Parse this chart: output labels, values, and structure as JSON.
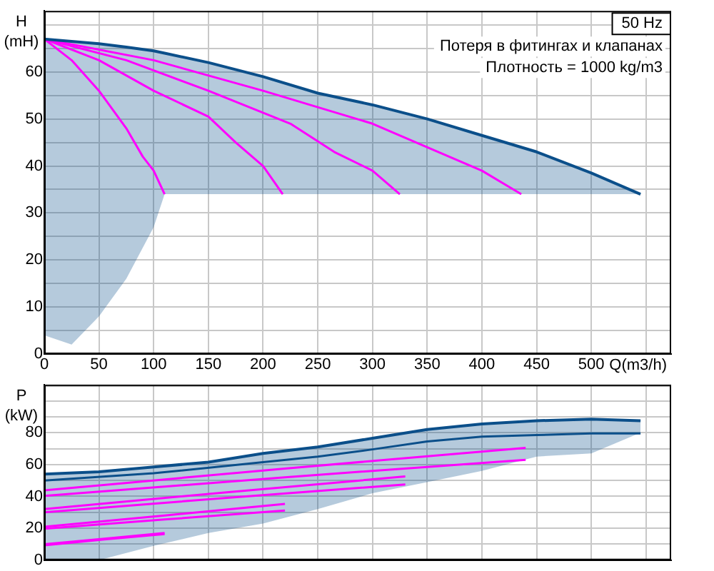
{
  "chart_data": [
    {
      "type": "line",
      "title": "50 Hz",
      "ylabel": "H (mH)",
      "xlabel": "Q(m3/h)",
      "annotations": [
        "Потеря в фитингах и клапанах",
        "Плотность = 1000 kg/m3"
      ],
      "xlim": [
        0,
        573
      ],
      "xticks": [
        0,
        50,
        100,
        150,
        200,
        250,
        300,
        350,
        400,
        450,
        500,
        {
          "value": 550,
          "label": null
        }
      ],
      "ylim": [
        0,
        73
      ],
      "yticks": [
        0,
        {
          "value": 5,
          "label": null
        },
        10,
        {
          "value": 15,
          "label": null
        },
        20,
        {
          "value": 25,
          "label": null
        },
        30,
        {
          "value": 35,
          "label": null
        },
        40,
        {
          "value": 45,
          "label": null
        },
        50,
        {
          "value": 55,
          "label": null
        },
        60,
        {
          "value": 65,
          "label": null
        },
        {
          "value": 70,
          "label": null
        }
      ],
      "grid": true,
      "legend": false,
      "marker": "none",
      "series": [
        {
          "color": "#0b4f8a",
          "x": [
            0,
            25,
            50,
            75,
            100,
            110,
            150,
            200,
            250,
            300,
            350,
            400,
            450,
            500,
            545
          ],
          "values": [
            67,
            66.5,
            66,
            65.3,
            64.5,
            64,
            62,
            59,
            55.5,
            53,
            50,
            46.5,
            43,
            38.5,
            34
          ],
          "lower": [
            4,
            2,
            8,
            16,
            27,
            34,
            34,
            34,
            34,
            34,
            34,
            34,
            34,
            34,
            34
          ],
          "upper": [
            67,
            66.5,
            66,
            65.3,
            64.5,
            64,
            62,
            59,
            55.5,
            53,
            50,
            46.5,
            43,
            38.5,
            34
          ]
        },
        {
          "color": "#ff00ff",
          "x": [
            0,
            100,
            200,
            300,
            360,
            400,
            436
          ],
          "values": [
            67,
            62.5,
            56,
            49,
            43,
            39,
            34
          ]
        },
        {
          "color": "#ff00ff",
          "x": [
            0,
            75,
            150,
            225,
            265,
            300,
            325
          ],
          "values": [
            67,
            62.5,
            56,
            49,
            43,
            39,
            34
          ]
        },
        {
          "color": "#ff00ff",
          "x": [
            0,
            50,
            100,
            150,
            175,
            200,
            218
          ],
          "values": [
            67,
            62.5,
            56,
            50.5,
            45,
            40,
            34
          ]
        },
        {
          "color": "#ff00ff",
          "x": [
            0,
            25,
            50,
            75,
            90,
            100,
            110
          ],
          "values": [
            67,
            62.5,
            56,
            48,
            42,
            39,
            34
          ]
        }
      ]
    },
    {
      "type": "line",
      "ylabel": "P (kW)",
      "tick_labels": "y",
      "xlim": [
        0,
        573
      ],
      "xticks": [
        0,
        50,
        100,
        150,
        200,
        250,
        300,
        350,
        400,
        450,
        500,
        {
          "value": 550,
          "label": null
        }
      ],
      "ylim": [
        0,
        110
      ],
      "yticks": [
        0,
        {
          "value": 10,
          "label": null
        },
        20,
        {
          "value": 30,
          "label": null
        },
        40,
        {
          "value": 50,
          "label": null
        },
        60,
        {
          "value": 70,
          "label": null
        },
        80,
        {
          "value": 90,
          "label": null
        },
        {
          "value": 100,
          "label": null
        },
        {
          "value": 110,
          "label": null
        }
      ],
      "grid": true,
      "legend": false,
      "marker": "none",
      "series": [
        {
          "color": "#0b4f8a",
          "x": [
            0,
            50,
            100,
            150,
            200,
            250,
            300,
            350,
            400,
            450,
            500,
            545
          ],
          "values": [
            54,
            55.5,
            58.5,
            61.5,
            67,
            71,
            76.5,
            82,
            85.5,
            87.5,
            88.5,
            87.5
          ],
          "lower": [
            0,
            0,
            9,
            17,
            23,
            32,
            42,
            49,
            56,
            65,
            67,
            80
          ],
          "upper": [
            54,
            55.5,
            58.5,
            61.5,
            67,
            71,
            76.5,
            82,
            85.5,
            87.5,
            88.5,
            87.5
          ]
        },
        {
          "color": "#0b4f8a",
          "x": [
            0,
            100,
            200,
            250,
            300,
            350,
            400,
            450,
            500,
            545
          ],
          "values": [
            50,
            54.5,
            61.5,
            65,
            69.5,
            74.5,
            77.5,
            78.5,
            79.5,
            79.5
          ]
        },
        {
          "color": "#ff00ff",
          "x": [
            0,
            220,
            440
          ],
          "values": [
            43.8,
            57.5,
            70.5
          ]
        },
        {
          "color": "#ff00ff",
          "x": [
            0,
            220,
            440
          ],
          "values": [
            40.3,
            52,
            63
          ]
        },
        {
          "color": "#ff00ff",
          "x": [
            0,
            165,
            330
          ],
          "values": [
            32,
            42.5,
            52.5
          ]
        },
        {
          "color": "#ff00ff",
          "x": [
            0,
            165,
            330
          ],
          "values": [
            30,
            39,
            47.5
          ]
        },
        {
          "color": "#ff00ff",
          "x": [
            0,
            110,
            220
          ],
          "values": [
            21,
            28,
            35.3
          ]
        },
        {
          "color": "#ff00ff",
          "x": [
            0,
            110,
            220
          ],
          "values": [
            19.7,
            25.5,
            31.2
          ]
        },
        {
          "color": "#ff00ff",
          "x": [
            0,
            55,
            110
          ],
          "values": [
            10,
            13.5,
            17
          ]
        },
        {
          "color": "#ff00ff",
          "x": [
            0,
            55,
            110
          ],
          "values": [
            9.3,
            13,
            16.4
          ]
        }
      ]
    }
  ]
}
